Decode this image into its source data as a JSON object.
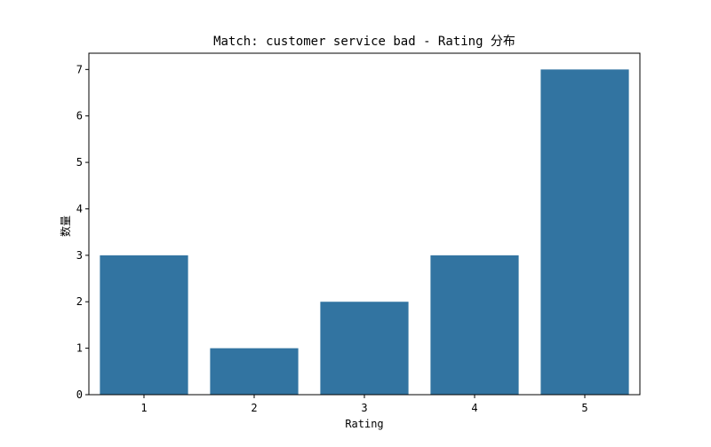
{
  "chart_data": {
    "type": "bar",
    "title": "Match: customer service bad - Rating 分布",
    "xlabel": "Rating",
    "ylabel": "数量",
    "categories": [
      "1",
      "2",
      "3",
      "4",
      "5"
    ],
    "values": [
      3,
      1,
      2,
      3,
      7
    ],
    "ylim": [
      0,
      7.35
    ],
    "yticks": [
      0,
      1,
      2,
      3,
      4,
      5,
      6,
      7
    ],
    "grid": false,
    "legend": "none",
    "bar_color": "#3274a1"
  }
}
